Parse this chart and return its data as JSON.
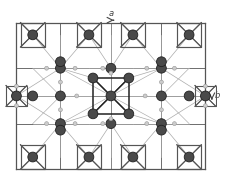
{
  "bg_color": "#ffffff",
  "large_sphere_color": "#4a4a4a",
  "large_sphere_edge": "#222222",
  "small_sphere_color": "#cccccc",
  "small_sphere_edge": "#999999",
  "line_color": "#aaaaaa",
  "bond_color": "#888888",
  "box_line_color": "#555555",
  "inner_box_color": "#222222",
  "axis_color": "#444444",
  "label_a": "a",
  "label_b": "b",
  "figsize": [
    2.36,
    1.81
  ],
  "dpi": 100
}
